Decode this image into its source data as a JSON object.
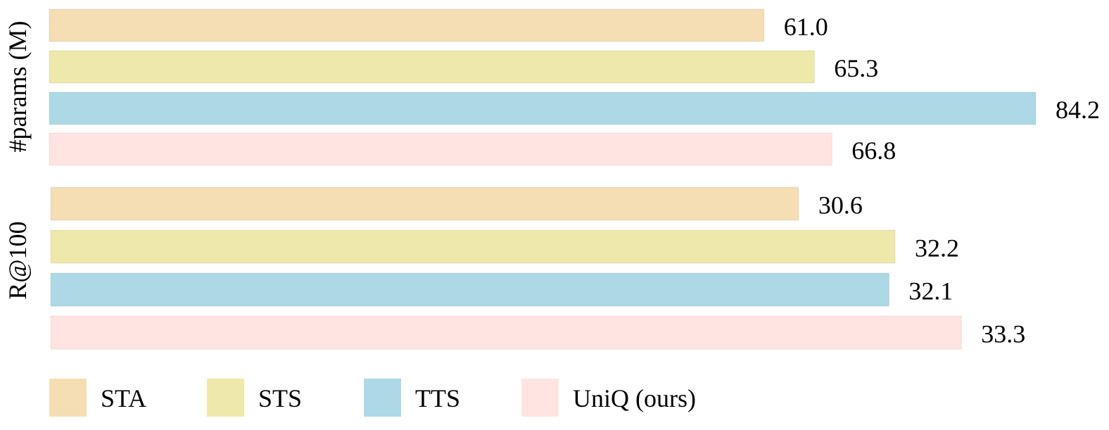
{
  "chart_data": [
    {
      "type": "bar",
      "orientation": "horizontal",
      "ylabel": "#params (M)",
      "categories": [
        "STA",
        "STS",
        "TTS",
        "UniQ (ours)"
      ],
      "values": [
        61.0,
        65.3,
        84.2,
        66.8
      ],
      "data_labels": [
        "61.0",
        "65.3",
        "84.2",
        "66.8"
      ],
      "xlim": [
        0,
        84.2
      ],
      "grid": false
    },
    {
      "type": "bar",
      "orientation": "horizontal",
      "ylabel": "R@100",
      "categories": [
        "STA",
        "STS",
        "TTS",
        "UniQ (ours)"
      ],
      "values": [
        30.6,
        32.2,
        32.1,
        33.3
      ],
      "data_labels": [
        "30.6",
        "32.2",
        "32.1",
        "33.3"
      ],
      "xlim": [
        18.2,
        33.6
      ],
      "grid": false
    }
  ],
  "legend": {
    "placement": "bottom",
    "items": [
      {
        "label": "STA",
        "color": "#f5deb3"
      },
      {
        "label": "STS",
        "color": "#eee8aa"
      },
      {
        "label": "TTS",
        "color": "#add8e6"
      },
      {
        "label": "UniQ (ours)",
        "color": "#ffe4e1"
      }
    ]
  },
  "colors": {
    "STA": "#f5deb3",
    "STS": "#eee8aa",
    "TTS": "#add8e6",
    "UniQ (ours)": "#ffe4e1"
  }
}
